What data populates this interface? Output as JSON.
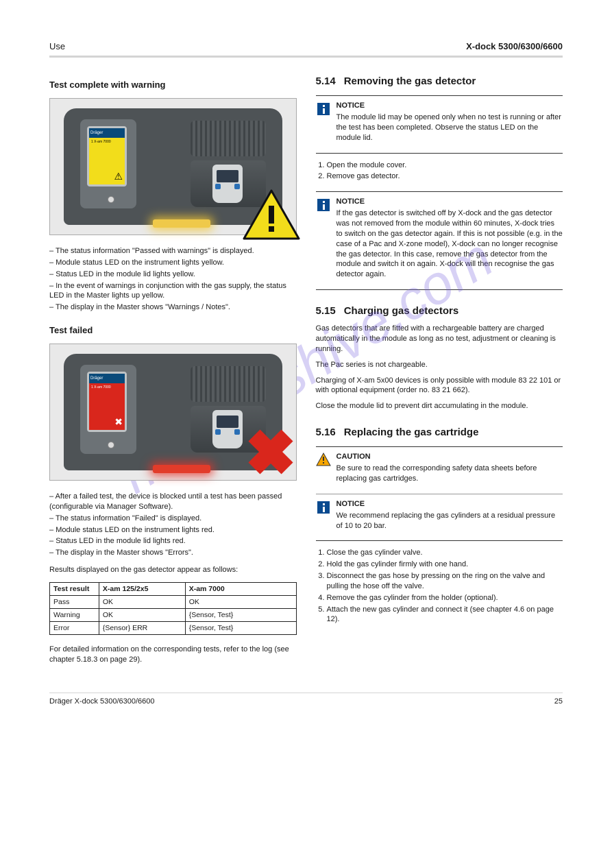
{
  "header": {
    "section": "Use",
    "product": "X-dock 5300/6300/6600"
  },
  "watermark": "manualshive.com",
  "left": {
    "test_complete_warning": {
      "heading": "Test complete with warning",
      "device_screen_title": "Dräger",
      "device_screen_text": "1  X-am 7000",
      "screen_color": "#f2dd1b",
      "corner_glyph": "⚠",
      "light_color": "#efc94a",
      "light_glow": "0 0 14px 4px rgba(245,200,50,0.8)",
      "bullets": [
        "The status information \"Passed with warnings\" is displayed.",
        "Module status LED on the instrument lights yellow.",
        "Status LED in the module lid lights yellow.",
        "In the event of warnings in conjunction with the gas supply, the status LED in the Master lights up yellow.",
        "The display in the Master shows \"Warnings / Notes\"."
      ]
    },
    "test_failed": {
      "heading": "Test failed",
      "device_screen_title": "Dräger",
      "device_screen_text": "1  X-am 7000",
      "screen_color": "#d9261c",
      "corner_glyph": "✖",
      "light_color": "#e23c2a",
      "light_glow": "0 0 14px 4px rgba(230,50,40,0.8)",
      "bullets": [
        "After a failed test, the device is blocked until a test has been passed (configurable via Manager Software).",
        "The status information \"Failed\" is displayed.",
        "Module status LED on the instrument lights red.",
        "Status LED in the module lid lights red.",
        "The display in the Master shows \"Errors\"."
      ]
    },
    "results_table": {
      "caption": "Results displayed on the gas detector appear as follows:",
      "columns": [
        "Test result",
        "X-am 125/2x5",
        "X-am 7000"
      ],
      "col_widths": [
        "20%",
        "35%",
        "45%"
      ],
      "rows": [
        [
          "Pass",
          "OK",
          "OK"
        ],
        [
          "Warning",
          "OK",
          "{Sensor, Test}"
        ],
        [
          "Error",
          "{Sensor} ERR",
          "{Sensor, Test}"
        ]
      ]
    },
    "log_note": "For detailed information on the corresponding tests, refer to the log (see chapter 5.18.3 on page 29)."
  },
  "right": {
    "section_5_14": {
      "num": "5.14",
      "title": "Removing the gas detector",
      "notice1": {
        "title": "NOTICE",
        "text": "The module lid may be opened only when no test is running or after the test has been completed. Observe the status LED on the module lid."
      },
      "steps1": [
        "Open the module cover.",
        "Remove gas detector."
      ],
      "notice2": {
        "title": "NOTICE",
        "text": "If the gas detector is switched off by X-dock and the gas detector was not removed from the module within 60 minutes, X-dock tries to switch on the gas detector again. If this is not possible (e.g. in the case of a Pac and X-zone model), X-dock can no longer recognise the gas detector. In this case, remove the gas detector from the module and switch it on again. X-dock will then recognise the gas detector again."
      }
    },
    "section_5_15": {
      "num": "5.15",
      "title": "Charging gas detectors",
      "para1": "Gas detectors that are fitted with a rechargeable battery are charged automatically in the module as long as no test, adjustment or cleaning is running.",
      "para2": "The Pac series is not chargeable.",
      "para3": "Charging of X-am 5x00 devices is only possible with module 83 22 101 or with optional equipment (order no. 83 21 662).",
      "para4": "Close the module lid to prevent dirt accumulating in the module."
    },
    "section_5_16": {
      "num": "5.16",
      "title": "Replacing the gas cartridge",
      "caution": {
        "title": "CAUTION",
        "text": "Be sure to read the corresponding safety data sheets before replacing gas cartridges."
      },
      "notice": {
        "title": "NOTICE",
        "text": "We recommend replacing the gas cylinders at a residual pressure of 10 to 20 bar."
      },
      "steps": [
        "Close the gas cylinder valve.",
        "Hold the gas cylinder firmly with one hand.",
        "Disconnect the gas hose by pressing on the ring on the valve and pulling the hose off the valve.",
        "Remove the gas cylinder from the holder (optional).",
        "Attach the new gas cylinder and connect it (see chapter 4.6 on page 12)."
      ]
    }
  },
  "footer": {
    "page": "25",
    "brand": "Dräger X-dock 5300/6300/6600"
  },
  "colors": {
    "notice_blue": "#0a4a8f",
    "caution_orange": "#f7a600"
  }
}
